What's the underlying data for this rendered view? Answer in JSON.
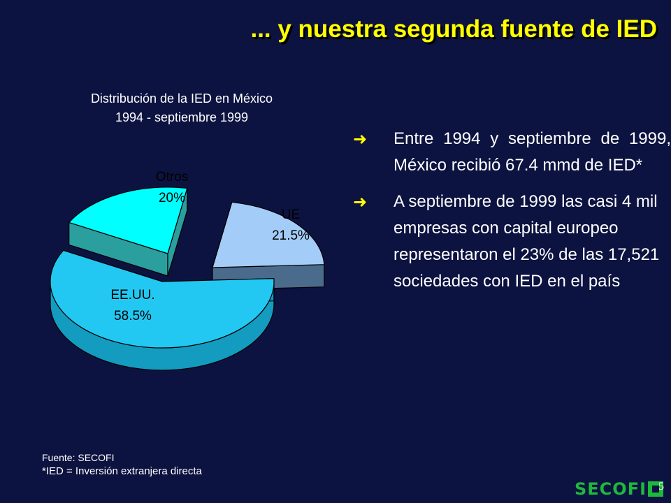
{
  "slide": {
    "title": "... y nuestra segunda fuente de IED",
    "page_number": "5"
  },
  "chart_data": {
    "type": "pie",
    "title": "Distribución de la IED en México",
    "subtitle": "1994 - septiembre 1999",
    "slices": [
      {
        "label": "Otros",
        "value": 20,
        "value_label": "20%",
        "color": "#00ffff",
        "side_color": "#2b9e9e"
      },
      {
        "label": "UE",
        "value": 21.5,
        "value_label": "21.5%",
        "color": "#a3cdf8",
        "side_color": "#4a6b8c"
      },
      {
        "label": "EE.UU.",
        "value": 58.5,
        "value_label": "58.5%",
        "color": "#22c8f2",
        "side_color": "#149bc0"
      }
    ]
  },
  "bullets": [
    {
      "icon": "arrow-right-icon",
      "text": "Entre 1994 y septiembre de 1999, México recibió 67.4 mmd de IED*"
    },
    {
      "icon": "arrow-right-icon",
      "text": "A septiembre de 1999 las casi 4 mil empresas con capital europeo representaron el 23% de las 17,521 sociedades con IED en el país"
    }
  ],
  "footer": {
    "source": "Fuente: SECOFI",
    "note": "*IED = Inversión extranjera directa"
  },
  "logo": {
    "text": "SECOFI",
    "color": "#1db83c"
  },
  "colors": {
    "background": "#0d1340",
    "title": "#ffff00",
    "text": "#ffffff",
    "arrow": "#ffff00"
  }
}
